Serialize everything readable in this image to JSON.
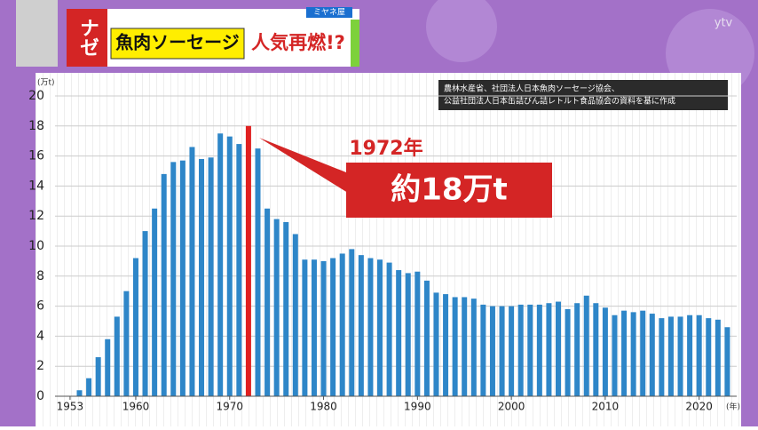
{
  "header": {
    "tag": "ナゼ",
    "topic": "魚肉ソーセージ",
    "headline": "人気再燃!?",
    "program": "ミヤネ屋",
    "logo": "ytv"
  },
  "chart_data": {
    "type": "bar",
    "source": [
      "農林水産省、社団法人日本魚肉ソーセージ協会、",
      "公益社団法人日本缶詰びん詰レトルト食品協会の資料を基に作成"
    ],
    "y_unit": "(万t)",
    "x_unit": "(年)",
    "x": [
      1953,
      1954,
      1955,
      1956,
      1957,
      1958,
      1959,
      1960,
      1961,
      1962,
      1963,
      1964,
      1965,
      1966,
      1967,
      1968,
      1969,
      1970,
      1971,
      1972,
      1973,
      1974,
      1975,
      1976,
      1977,
      1978,
      1979,
      1980,
      1981,
      1982,
      1983,
      1984,
      1985,
      1986,
      1987,
      1988,
      1989,
      1990,
      1991,
      1992,
      1993,
      1994,
      1995,
      1996,
      1997,
      1998,
      1999,
      2000,
      2001,
      2002,
      2003,
      2004,
      2005,
      2006,
      2007,
      2008,
      2009,
      2010,
      2011,
      2012,
      2013,
      2014,
      2015,
      2016,
      2017,
      2018,
      2019,
      2020,
      2021,
      2022,
      2023
    ],
    "values": [
      0,
      0.4,
      1.2,
      2.6,
      3.8,
      5.3,
      7.0,
      9.2,
      11.0,
      12.5,
      14.8,
      15.6,
      15.7,
      16.6,
      15.8,
      15.9,
      17.5,
      17.3,
      16.8,
      18.0,
      16.5,
      12.5,
      11.8,
      11.6,
      10.8,
      9.1,
      9.1,
      9.0,
      9.2,
      9.5,
      9.8,
      9.4,
      9.2,
      9.1,
      8.9,
      8.4,
      8.2,
      8.3,
      7.7,
      6.9,
      6.8,
      6.6,
      6.6,
      6.5,
      6.1,
      6.0,
      6.0,
      6.0,
      6.1,
      6.1,
      6.1,
      6.2,
      6.3,
      5.8,
      6.2,
      6.7,
      6.2,
      5.9,
      5.4,
      5.7,
      5.6,
      5.7,
      5.5,
      5.2,
      5.3,
      5.3,
      5.4,
      5.4,
      5.2,
      5.1,
      4.6
    ],
    "color": "#2e86c8",
    "highlight_color": "#e02020",
    "annotation": {
      "x": 1972,
      "label": "1972年",
      "value_label": "約18万t"
    },
    "xlim": [
      1951.4,
      2024
    ],
    "xticks": [
      1953,
      1960,
      1970,
      1980,
      1990,
      2000,
      2010,
      2020
    ],
    "ylim": [
      0,
      20
    ],
    "yticks": [
      0,
      2,
      4,
      6,
      8,
      10,
      12,
      14,
      16,
      18,
      20
    ],
    "grid": true
  }
}
